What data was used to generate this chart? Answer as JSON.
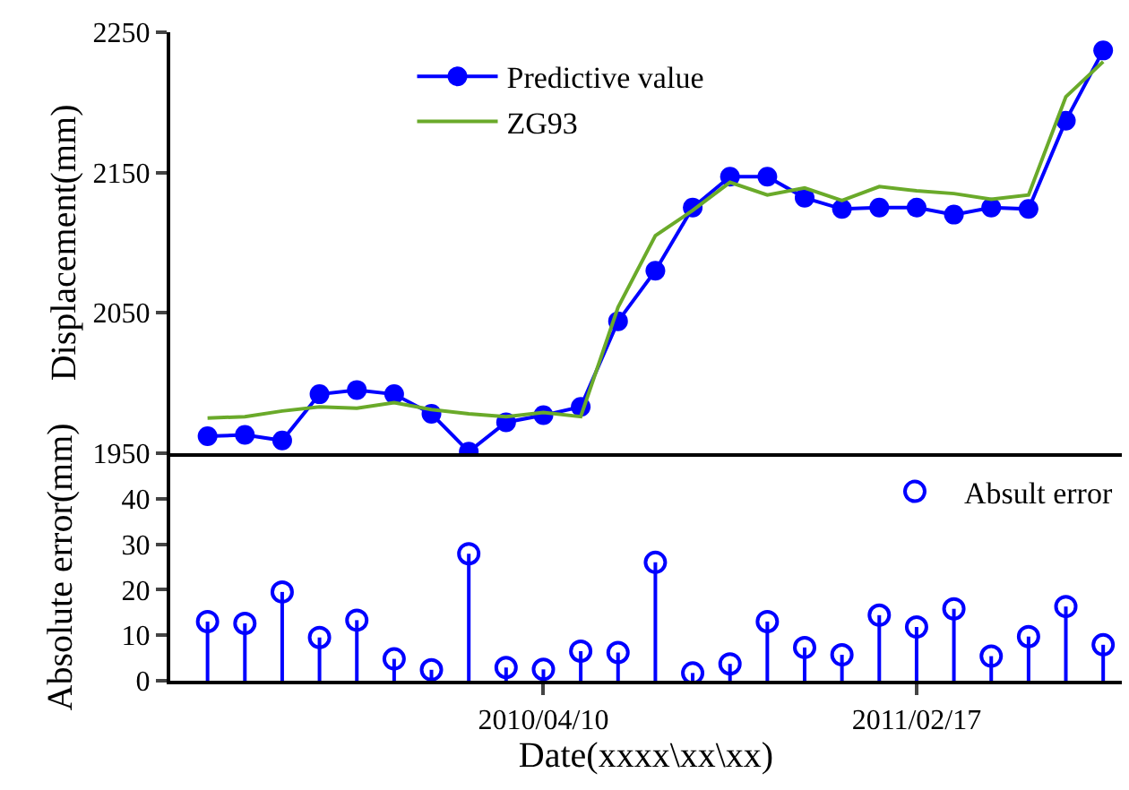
{
  "chart_data": [
    {
      "type": "line",
      "ylabel": "Displacement(mm)",
      "categories": [
        null,
        null,
        null,
        null,
        null,
        null,
        null,
        null,
        null,
        "2010/04/10",
        null,
        null,
        null,
        null,
        null,
        null,
        null,
        null,
        null,
        "2011/02/17",
        null,
        null,
        null,
        null,
        null
      ],
      "ylim": [
        1950,
        2250
      ],
      "yticks": [
        1950,
        2050,
        2150,
        2250
      ],
      "tick_labels": "y",
      "legend": "top left",
      "grid": false,
      "series": [
        {
          "name": "Predictive value",
          "color": "#0000ff",
          "marker": "circle",
          "values": [
            1962,
            1963,
            1959,
            1992,
            1995,
            1992,
            1978,
            1951,
            1972,
            1977,
            1983,
            2044,
            2080,
            2125,
            2147,
            2147,
            2132,
            2124,
            2125,
            2125,
            2120,
            2125,
            2124,
            2187,
            2237
          ]
        },
        {
          "name": "ZG93",
          "color": "#6aaa2a",
          "marker": "none",
          "values": [
            1975,
            1976,
            1980,
            1983,
            1982,
            1986,
            1981,
            1978,
            1976,
            1979,
            1976,
            2054,
            2105,
            2123,
            2143,
            2134,
            2139,
            2130,
            2140,
            2137,
            2135,
            2131,
            2134,
            2204,
            2229
          ]
        }
      ]
    },
    {
      "type": "lollipop",
      "xlabel": "Date(xxxx\\xx\\xx)",
      "ylabel": "Absolute error(mm)",
      "categories": [
        null,
        null,
        null,
        null,
        null,
        null,
        null,
        null,
        null,
        "2010/04/10",
        null,
        null,
        null,
        null,
        null,
        null,
        null,
        null,
        null,
        "2011/02/17",
        null,
        null,
        null,
        null,
        null
      ],
      "ylim": [
        0,
        50
      ],
      "yticks": [
        0,
        10,
        20,
        30,
        40
      ],
      "legend": "top right",
      "grid": false,
      "marker": "circle",
      "series": [
        {
          "name": "Absult error",
          "color": "#0000ff",
          "values": [
            13,
            12.6,
            19.5,
            9.5,
            13.3,
            4.8,
            2.4,
            27.9,
            2.9,
            2.5,
            6.5,
            6.2,
            26,
            1.7,
            3.7,
            13,
            7.3,
            5.7,
            14.4,
            11.8,
            15.8,
            5.4,
            9.7,
            16.3,
            7.9
          ]
        }
      ]
    }
  ]
}
